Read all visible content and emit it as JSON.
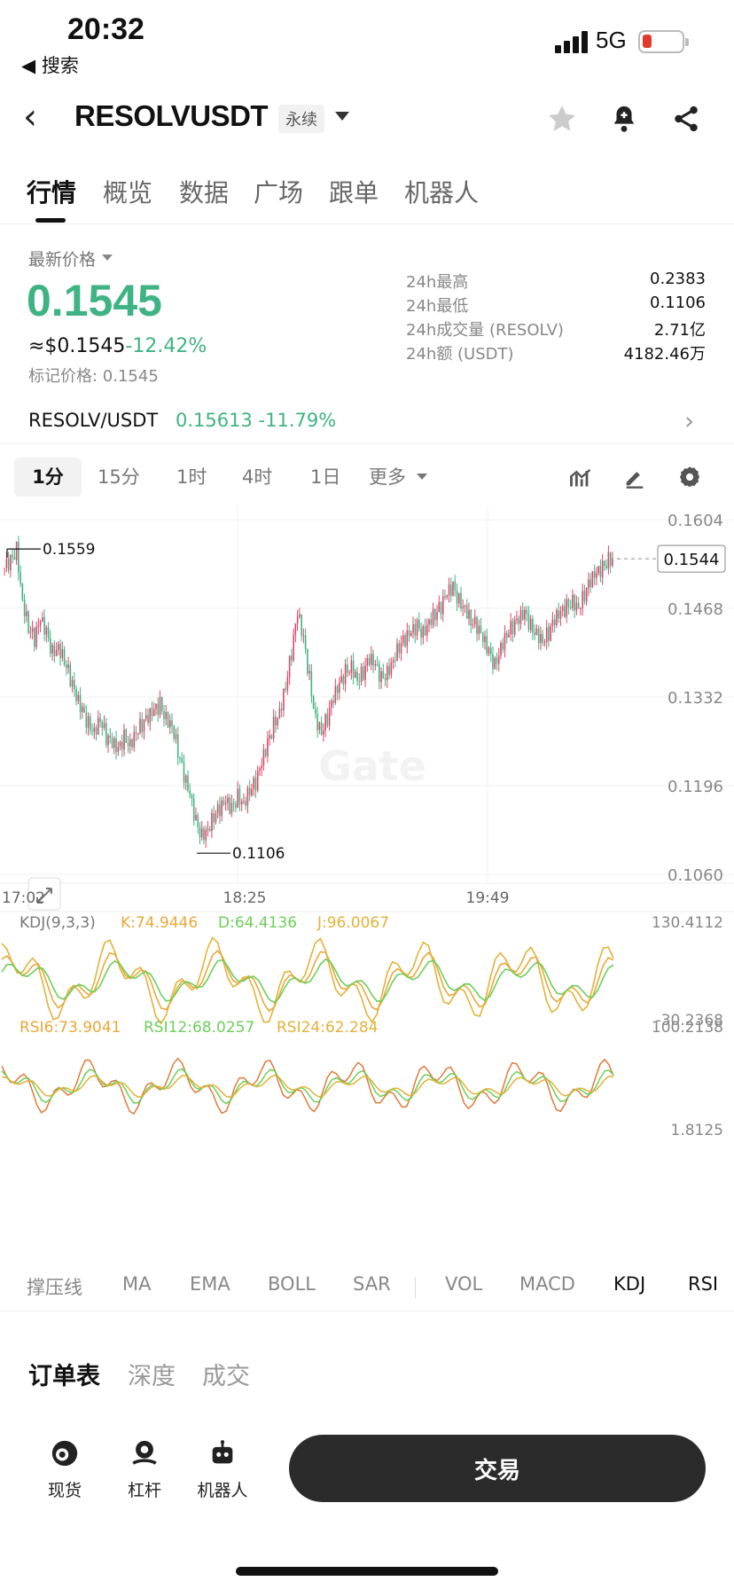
{
  "status": {
    "time": "20:32",
    "back_label": "◀ 搜索",
    "network": "5G"
  },
  "header": {
    "symbol": "RESOLVUSDT",
    "badge": "永续"
  },
  "tabs": [
    "行情",
    "概览",
    "数据",
    "广场",
    "跟单",
    "机器人"
  ],
  "price_info": {
    "latest_label": "最新价格",
    "price": "0.1545",
    "usd_price": "≈$0.1545",
    "change": "-12.42%",
    "mark_price": "标记价格: 0.1545",
    "stats": [
      {
        "label": "24h最高",
        "value": "0.2383"
      },
      {
        "label": "24h最低",
        "value": "0.1106"
      },
      {
        "label": "24h成交量 (RESOLV)",
        "value": "2.71亿"
      },
      {
        "label": "24h额 (USDT)",
        "value": "4182.46万"
      }
    ],
    "pair": "RESOLV/USDT",
    "pair_price": "0.15613 -11.79%"
  },
  "timeframes": [
    "1分",
    "15分",
    "1时",
    "4时",
    "1日",
    "更多"
  ],
  "chart_data": {
    "type": "candlestick",
    "y_ticks": [
      "0.1604",
      "0.1468",
      "0.1332",
      "0.1196",
      "0.1060"
    ],
    "ylim": [
      0.106,
      0.1604
    ],
    "x_ticks": [
      "17:02",
      "18:25",
      "19:49"
    ],
    "last_price_label": "0.1544",
    "high_label": "0.1559",
    "low_label": "0.1106",
    "watermark": "Gate",
    "close_path": [
      0.153,
      0.154,
      0.1559,
      0.148,
      0.144,
      0.142,
      0.145,
      0.143,
      0.14,
      0.141,
      0.139,
      0.136,
      0.133,
      0.131,
      0.129,
      0.128,
      0.13,
      0.127,
      0.126,
      0.125,
      0.127,
      0.126,
      0.128,
      0.129,
      0.13,
      0.131,
      0.132,
      0.13,
      0.129,
      0.125,
      0.121,
      0.118,
      0.114,
      0.112,
      0.113,
      0.115,
      0.116,
      0.117,
      0.116,
      0.118,
      0.117,
      0.119,
      0.12,
      0.123,
      0.126,
      0.129,
      0.131,
      0.135,
      0.14,
      0.146,
      0.142,
      0.136,
      0.13,
      0.128,
      0.13,
      0.133,
      0.135,
      0.137,
      0.138,
      0.136,
      0.137,
      0.139,
      0.138,
      0.136,
      0.137,
      0.139,
      0.141,
      0.142,
      0.143,
      0.144,
      0.143,
      0.145,
      0.146,
      0.147,
      0.149,
      0.15,
      0.148,
      0.147,
      0.145,
      0.144,
      0.142,
      0.14,
      0.138,
      0.141,
      0.143,
      0.144,
      0.145,
      0.146,
      0.144,
      0.143,
      0.142,
      0.143,
      0.145,
      0.146,
      0.147,
      0.148,
      0.147,
      0.149,
      0.151,
      0.152,
      0.153,
      0.1544
    ]
  },
  "kdj": {
    "label": "KDJ(9,3,3)",
    "k": "K:74.9446",
    "d": "D:64.4136",
    "j": "J:96.0067",
    "max": "130.4112",
    "min": "-30.2368"
  },
  "rsi": {
    "r6": "RSI6:73.9041",
    "r12": "RSI12:68.0257",
    "r24": "RSI24:62.284",
    "max": "100.2138",
    "min": "1.8125"
  },
  "indicators": [
    "撑压线",
    "MA",
    "EMA",
    "BOLL",
    "SAR",
    "VOL",
    "MACD",
    "KDJ",
    "RSI"
  ],
  "orderbook_tabs": [
    "订单表",
    "深度",
    "成交"
  ],
  "bottom_nav": [
    {
      "label": "现货",
      "icon": "spot-icon"
    },
    {
      "label": "杠杆",
      "icon": "margin-icon"
    },
    {
      "label": "机器人",
      "icon": "robot-icon"
    }
  ],
  "trade_label": "交易",
  "colors": {
    "up": "#e0446a",
    "down": "#3fb383",
    "k": "#e8a93a",
    "d": "#6ccf5b",
    "j": "#e2b23a"
  }
}
